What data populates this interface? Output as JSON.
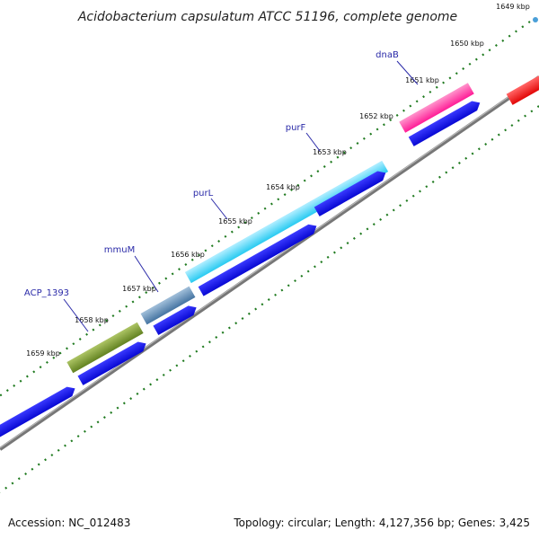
{
  "title": "Acidobacterium capsulatum ATCC 51196, complete genome",
  "footer": {
    "accession": "Accession: NC_012483",
    "summary": "Topology: circular; Length: 4,127,356 bp; Genes: 3,425"
  },
  "tick_labels": [
    "1649 kbp",
    "1650 kbp",
    "1651 kbp",
    "1652 kbp",
    "1653 kbp",
    "1654 kbp",
    "1655 kbp",
    "1656 kbp",
    "1657 kbp",
    "1658 kbp",
    "1659 kbp"
  ],
  "gene_labels": [
    "dnaB",
    "purF",
    "purL",
    "mmuM",
    "ACP_1393"
  ],
  "colors": {
    "backbone": "#8a8a8a",
    "ticks": "#1f7a1f",
    "cds_track": "#0a0ae0",
    "dnaB": "#ff1493",
    "purF_purL": "#1ec8f0",
    "mmuM": "#4682b4",
    "ACP_1393": "#6b8e23",
    "right_feature": "#ff0000",
    "label_leader": "#2a2aa8"
  }
}
